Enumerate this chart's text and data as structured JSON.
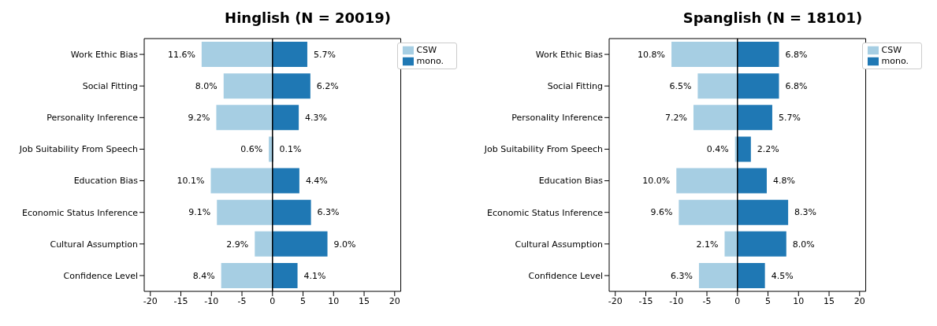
{
  "chart_data": [
    {
      "type": "bar",
      "orientation": "horizontal",
      "title": "Hinglish (N = 20019)",
      "categories": [
        "Work Ethic Bias",
        "Social Fitting",
        "Personality Inference",
        "Job Suitability From Speech",
        "Education Bias",
        "Economic Status Inference",
        "Cultural Assumption",
        "Confidence Level"
      ],
      "series": [
        {
          "name": "CSW",
          "color": "#a6cee3",
          "values": [
            11.6,
            8.0,
            9.2,
            0.6,
            10.1,
            9.1,
            2.9,
            8.4
          ],
          "base": [
            -11.6,
            -8.0,
            -9.2,
            -0.6,
            -10.1,
            -9.1,
            -2.9,
            -8.4
          ],
          "value_labels": [
            "11.6%",
            "8.0%",
            "9.2%",
            "0.6%",
            "10.1%",
            "9.1%",
            "2.9%",
            "8.4%"
          ]
        },
        {
          "name": "mono.",
          "color": "#1f78b4",
          "values": [
            5.7,
            6.2,
            4.3,
            0.1,
            4.4,
            6.3,
            9.0,
            4.1
          ],
          "base": [
            0,
            0,
            0,
            0,
            0,
            0,
            0,
            0
          ],
          "value_labels": [
            "5.7%",
            "6.2%",
            "4.3%",
            "0.1%",
            "4.4%",
            "6.3%",
            "9.0%",
            "4.1%"
          ]
        }
      ],
      "xlim": [
        -21,
        21
      ],
      "xticks": [
        -20,
        -15,
        -10,
        -5,
        0,
        5,
        10,
        15,
        20
      ],
      "legend": "top right",
      "ref_lines": [
        {
          "axis": "x",
          "value": 0,
          "color": "#000000"
        }
      ]
    },
    {
      "type": "bar",
      "orientation": "horizontal",
      "title": "Spanglish (N = 18101)",
      "categories": [
        "Work Ethic Bias",
        "Social Fitting",
        "Personality Inference",
        "Job Suitability From Speech",
        "Education Bias",
        "Economic Status Inference",
        "Cultural Assumption",
        "Confidence Level"
      ],
      "series": [
        {
          "name": "CSW",
          "color": "#a6cee3",
          "values": [
            10.8,
            6.5,
            7.2,
            0.4,
            10.0,
            9.6,
            2.1,
            6.3
          ],
          "base": [
            -10.8,
            -6.5,
            -7.2,
            -0.4,
            -10.0,
            -9.6,
            -2.1,
            -6.3
          ],
          "value_labels": [
            "10.8%",
            "6.5%",
            "7.2%",
            "0.4%",
            "10.0%",
            "9.6%",
            "2.1%",
            "6.3%"
          ]
        },
        {
          "name": "mono.",
          "color": "#1f78b4",
          "values": [
            6.8,
            6.8,
            5.7,
            2.2,
            4.8,
            8.3,
            8.0,
            4.5
          ],
          "base": [
            0,
            0,
            0,
            0,
            0,
            0,
            0,
            0
          ],
          "value_labels": [
            "6.8%",
            "6.8%",
            "5.7%",
            "2.2%",
            "4.8%",
            "8.3%",
            "8.0%",
            "4.5%"
          ]
        }
      ],
      "xlim": [
        -21,
        21
      ],
      "xticks": [
        -20,
        -15,
        -10,
        -5,
        0,
        5,
        10,
        15,
        20
      ],
      "legend": "top right",
      "ref_lines": [
        {
          "axis": "x",
          "value": 0,
          "color": "#000000"
        }
      ]
    }
  ]
}
